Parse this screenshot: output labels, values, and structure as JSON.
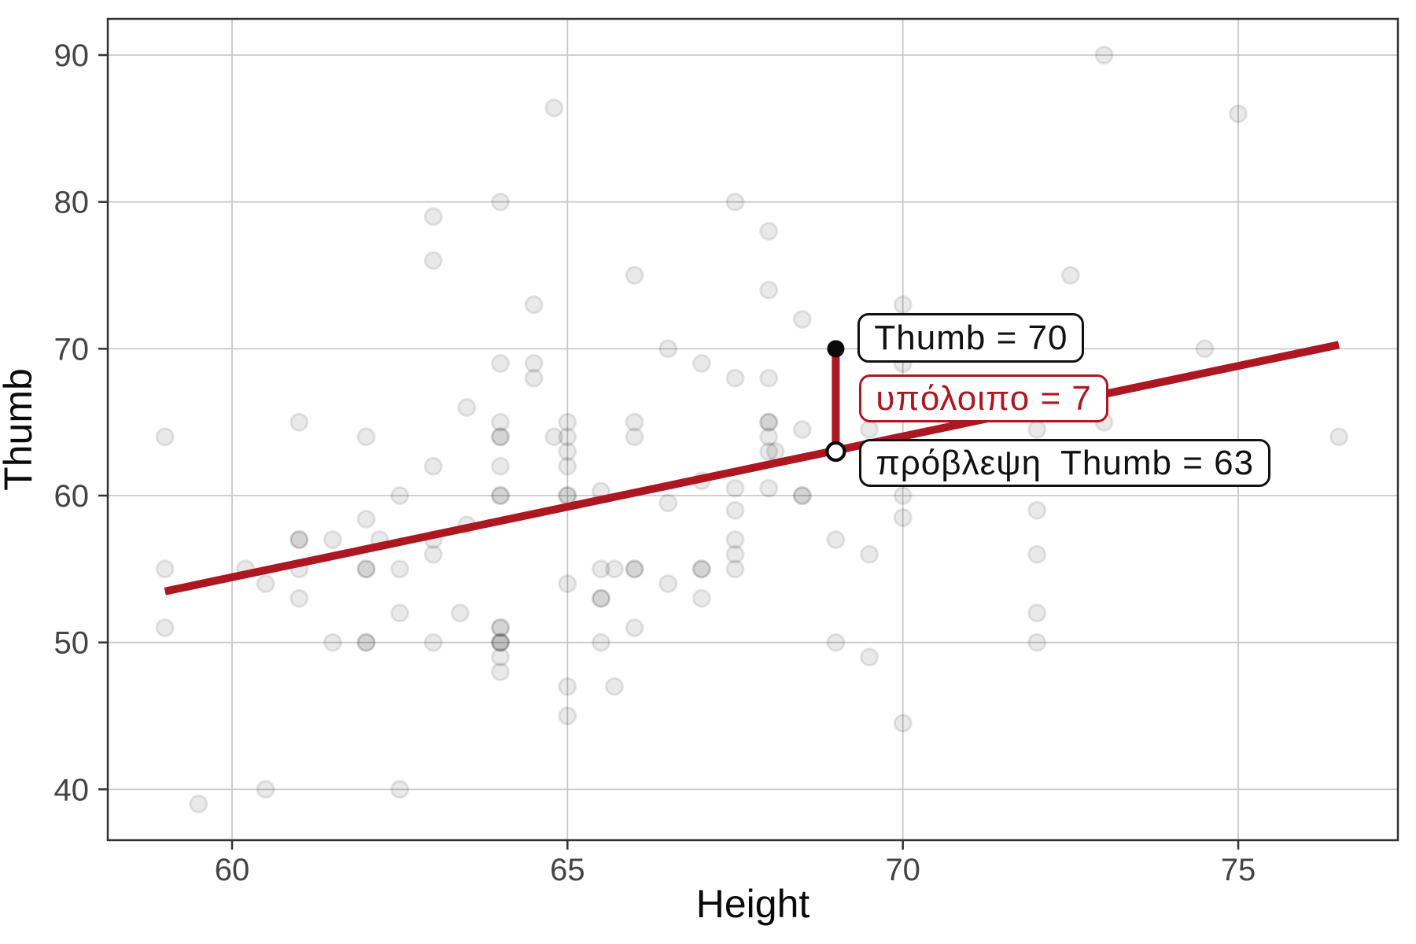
{
  "chart_data": {
    "type": "scatter",
    "title": "",
    "xlabel": "Height",
    "ylabel": "Thumb",
    "x_ticks": [
      60,
      65,
      70,
      75
    ],
    "y_ticks": [
      40,
      50,
      60,
      70,
      80,
      90
    ],
    "xlim": [
      58.15,
      77.4
    ],
    "ylim": [
      36.5,
      92.5
    ],
    "grid": true,
    "points": [
      [
        73,
        90
      ],
      [
        64.8,
        86.4
      ],
      [
        75,
        86
      ],
      [
        64,
        80
      ],
      [
        67.5,
        80
      ],
      [
        63,
        79
      ],
      [
        68,
        78
      ],
      [
        63,
        76
      ],
      [
        66,
        75
      ],
      [
        72.5,
        75
      ],
      [
        68,
        74
      ],
      [
        64.5,
        73
      ],
      [
        70,
        73
      ],
      [
        68.5,
        72
      ],
      [
        66.5,
        70
      ],
      [
        74.5,
        70
      ],
      [
        64,
        69
      ],
      [
        64.5,
        69
      ],
      [
        67,
        69
      ],
      [
        70,
        69
      ],
      [
        64.5,
        68
      ],
      [
        67.5,
        68
      ],
      [
        68,
        68
      ],
      [
        63.5,
        66
      ],
      [
        61,
        65
      ],
      [
        64,
        65
      ],
      [
        65,
        65
      ],
      [
        66,
        65
      ],
      [
        68,
        65
      ],
      [
        68,
        65
      ],
      [
        73,
        65
      ],
      [
        59,
        64
      ],
      [
        62,
        64
      ],
      [
        64,
        64
      ],
      [
        64,
        64
      ],
      [
        64.8,
        64
      ],
      [
        65,
        64
      ],
      [
        66,
        64
      ],
      [
        68,
        64
      ],
      [
        68.5,
        64.5
      ],
      [
        69.5,
        64.5
      ],
      [
        72,
        64.5
      ],
      [
        76.5,
        64
      ],
      [
        65,
        63
      ],
      [
        68,
        63
      ],
      [
        68.1,
        63
      ],
      [
        63,
        62
      ],
      [
        64,
        62
      ],
      [
        65,
        62
      ],
      [
        67,
        61
      ],
      [
        62.5,
        60
      ],
      [
        64,
        60
      ],
      [
        64,
        60
      ],
      [
        65,
        60
      ],
      [
        65,
        60
      ],
      [
        65.5,
        60.3
      ],
      [
        67.5,
        60.5
      ],
      [
        68,
        60.5
      ],
      [
        68.5,
        60
      ],
      [
        68.5,
        60
      ],
      [
        70,
        60
      ],
      [
        66.5,
        59.5
      ],
      [
        67.5,
        59
      ],
      [
        72,
        59
      ],
      [
        70,
        58.5
      ],
      [
        62,
        58.4
      ],
      [
        63.5,
        58
      ],
      [
        61,
        57
      ],
      [
        61,
        57
      ],
      [
        61.5,
        57
      ],
      [
        62.2,
        57
      ],
      [
        63,
        57
      ],
      [
        67.5,
        57
      ],
      [
        69,
        57
      ],
      [
        63,
        56
      ],
      [
        67.5,
        56
      ],
      [
        69.5,
        56
      ],
      [
        72,
        56
      ],
      [
        59,
        55
      ],
      [
        60.2,
        55
      ],
      [
        61,
        55
      ],
      [
        62,
        55
      ],
      [
        62,
        55
      ],
      [
        62.5,
        55
      ],
      [
        65.5,
        55
      ],
      [
        65.7,
        55
      ],
      [
        66,
        55
      ],
      [
        66,
        55
      ],
      [
        67,
        55
      ],
      [
        67,
        55
      ],
      [
        67.5,
        55
      ],
      [
        60.5,
        54
      ],
      [
        65,
        54
      ],
      [
        66.5,
        54
      ],
      [
        61,
        53
      ],
      [
        65.5,
        53
      ],
      [
        65.5,
        53
      ],
      [
        67,
        53
      ],
      [
        62.5,
        52
      ],
      [
        63.4,
        52
      ],
      [
        72,
        52
      ],
      [
        59,
        51
      ],
      [
        64,
        51
      ],
      [
        64,
        51
      ],
      [
        66,
        51
      ],
      [
        61.5,
        50
      ],
      [
        62,
        50
      ],
      [
        62,
        50
      ],
      [
        63,
        50
      ],
      [
        64,
        50
      ],
      [
        64,
        50
      ],
      [
        64,
        50
      ],
      [
        65.5,
        50
      ],
      [
        69,
        50
      ],
      [
        72,
        50
      ],
      [
        64,
        49
      ],
      [
        69.5,
        49
      ],
      [
        64,
        48
      ],
      [
        65,
        47
      ],
      [
        65.7,
        47
      ],
      [
        65,
        45
      ],
      [
        70,
        44.5
      ],
      [
        60.5,
        40
      ],
      [
        62.5,
        40
      ],
      [
        59.5,
        39
      ]
    ],
    "regression_line": {
      "x1": 59,
      "y1": 53.48,
      "x2": 76.5,
      "y2": 70.27
    },
    "focus": {
      "x": 69,
      "observed": 70,
      "predicted": 63,
      "residual": 7
    },
    "legend": null
  },
  "annotations": {
    "observed_label": "Thumb = 70",
    "residual_label": "υπόλοιπο = 7",
    "prediction_prefix": "πρόβλεψη",
    "prediction_label": "Thumb = 63"
  },
  "colors": {
    "accent_red": "#AC1722",
    "panel_border": "#333333",
    "gridline": "#C9C9C9",
    "tick_label": "#444444",
    "axis_title": "#0A0A0A",
    "marker_black": "#0A0A0A"
  }
}
